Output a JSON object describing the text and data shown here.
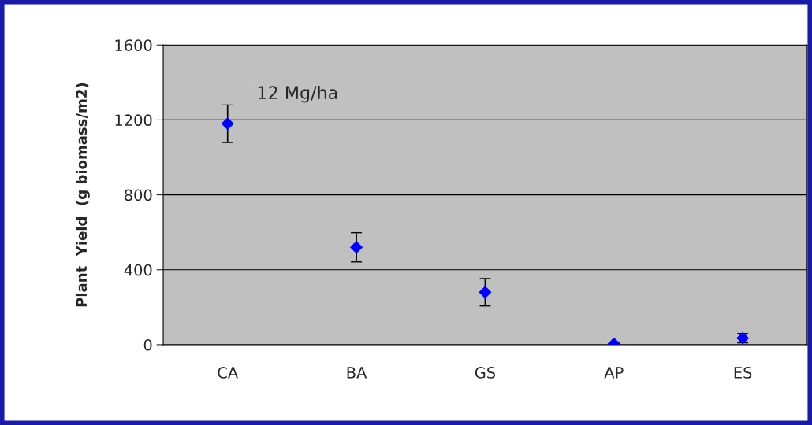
{
  "chart_data": {
    "type": "scatter",
    "ylabel": "Plant  Yield  (g biomass/m2)",
    "categories": [
      "CA",
      "BA",
      "GS",
      "AP",
      "ES"
    ],
    "values": [
      1180,
      520,
      280,
      5,
      35
    ],
    "errors": [
      100,
      78,
      73,
      5,
      25
    ],
    "color": "#0000ff",
    "marker": "diamond",
    "ylim": [
      0,
      1600
    ],
    "yticks": [
      0,
      400,
      800,
      1200,
      1600
    ],
    "grid": "y",
    "legend": false,
    "annotations": [
      "12 Mg/ha"
    ]
  }
}
